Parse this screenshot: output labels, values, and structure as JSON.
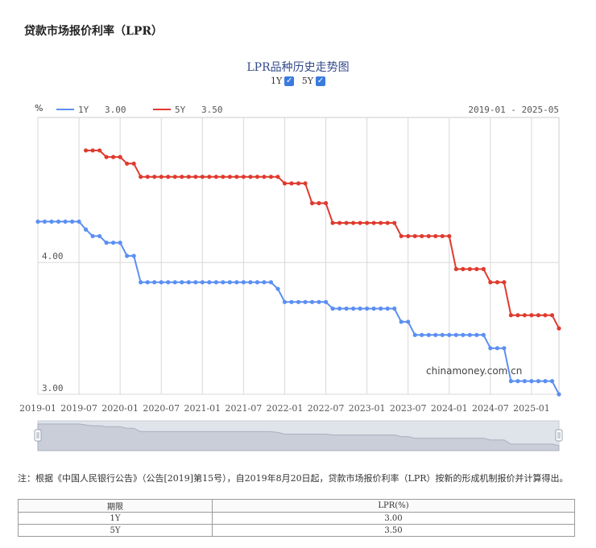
{
  "page": {
    "title": "贷款市场报价利率（LPR）"
  },
  "chart_header": {
    "title": "LPR品种历史走势图",
    "toggles": [
      {
        "label": "1Y",
        "checked": true
      },
      {
        "label": "5Y",
        "checked": true
      }
    ]
  },
  "watermark": "chinamoney.com.cn",
  "chart_data": {
    "type": "line",
    "title": "LPR品种历史走势图",
    "ylabel": "%",
    "date_range_label": "2019-01 - 2025-05",
    "ylim": [
      3.0,
      5.1
    ],
    "yticks": [
      3.0,
      4.0
    ],
    "ytick_labels": [
      "3.00",
      "4.00"
    ],
    "xlim": [
      "2019-01",
      "2025-05"
    ],
    "xtick_labels": [
      "2019-01",
      "2019-07",
      "2020-01",
      "2020-07",
      "2021-01",
      "2021-07",
      "2022-01",
      "2022-07",
      "2023-01",
      "2023-07",
      "2024-01",
      "2024-07",
      "2025-01"
    ],
    "grid": true,
    "legend_position": "top-left",
    "series": [
      {
        "name": "1Y",
        "current": "3.00",
        "color": "#5b8ff2",
        "points": [
          [
            "2019-01",
            4.31
          ],
          [
            "2019-02",
            4.31
          ],
          [
            "2019-03",
            4.31
          ],
          [
            "2019-04",
            4.31
          ],
          [
            "2019-05",
            4.31
          ],
          [
            "2019-06",
            4.31
          ],
          [
            "2019-07",
            4.31
          ],
          [
            "2019-08",
            4.25
          ],
          [
            "2019-09",
            4.2
          ],
          [
            "2019-10",
            4.2
          ],
          [
            "2019-11",
            4.15
          ],
          [
            "2019-12",
            4.15
          ],
          [
            "2020-01",
            4.15
          ],
          [
            "2020-02",
            4.05
          ],
          [
            "2020-03",
            4.05
          ],
          [
            "2020-04",
            3.85
          ],
          [
            "2020-05",
            3.85
          ],
          [
            "2020-06",
            3.85
          ],
          [
            "2020-07",
            3.85
          ],
          [
            "2020-08",
            3.85
          ],
          [
            "2020-09",
            3.85
          ],
          [
            "2020-10",
            3.85
          ],
          [
            "2020-11",
            3.85
          ],
          [
            "2020-12",
            3.85
          ],
          [
            "2021-01",
            3.85
          ],
          [
            "2021-02",
            3.85
          ],
          [
            "2021-03",
            3.85
          ],
          [
            "2021-04",
            3.85
          ],
          [
            "2021-05",
            3.85
          ],
          [
            "2021-06",
            3.85
          ],
          [
            "2021-07",
            3.85
          ],
          [
            "2021-08",
            3.85
          ],
          [
            "2021-09",
            3.85
          ],
          [
            "2021-10",
            3.85
          ],
          [
            "2021-11",
            3.85
          ],
          [
            "2021-12",
            3.8
          ],
          [
            "2022-01",
            3.7
          ],
          [
            "2022-02",
            3.7
          ],
          [
            "2022-03",
            3.7
          ],
          [
            "2022-04",
            3.7
          ],
          [
            "2022-05",
            3.7
          ],
          [
            "2022-06",
            3.7
          ],
          [
            "2022-07",
            3.7
          ],
          [
            "2022-08",
            3.65
          ],
          [
            "2022-09",
            3.65
          ],
          [
            "2022-10",
            3.65
          ],
          [
            "2022-11",
            3.65
          ],
          [
            "2022-12",
            3.65
          ],
          [
            "2023-01",
            3.65
          ],
          [
            "2023-02",
            3.65
          ],
          [
            "2023-03",
            3.65
          ],
          [
            "2023-04",
            3.65
          ],
          [
            "2023-05",
            3.65
          ],
          [
            "2023-06",
            3.55
          ],
          [
            "2023-07",
            3.55
          ],
          [
            "2023-08",
            3.45
          ],
          [
            "2023-09",
            3.45
          ],
          [
            "2023-10",
            3.45
          ],
          [
            "2023-11",
            3.45
          ],
          [
            "2023-12",
            3.45
          ],
          [
            "2024-01",
            3.45
          ],
          [
            "2024-02",
            3.45
          ],
          [
            "2024-03",
            3.45
          ],
          [
            "2024-04",
            3.45
          ],
          [
            "2024-05",
            3.45
          ],
          [
            "2024-06",
            3.45
          ],
          [
            "2024-07",
            3.35
          ],
          [
            "2024-08",
            3.35
          ],
          [
            "2024-09",
            3.35
          ],
          [
            "2024-10",
            3.1
          ],
          [
            "2024-11",
            3.1
          ],
          [
            "2024-12",
            3.1
          ],
          [
            "2025-01",
            3.1
          ],
          [
            "2025-02",
            3.1
          ],
          [
            "2025-03",
            3.1
          ],
          [
            "2025-04",
            3.1
          ],
          [
            "2025-05",
            3.0
          ]
        ]
      },
      {
        "name": "5Y",
        "current": "3.50",
        "color": "#e03a2e",
        "points": [
          [
            "2019-08",
            4.85
          ],
          [
            "2019-09",
            4.85
          ],
          [
            "2019-10",
            4.85
          ],
          [
            "2019-11",
            4.8
          ],
          [
            "2019-12",
            4.8
          ],
          [
            "2020-01",
            4.8
          ],
          [
            "2020-02",
            4.75
          ],
          [
            "2020-03",
            4.75
          ],
          [
            "2020-04",
            4.65
          ],
          [
            "2020-05",
            4.65
          ],
          [
            "2020-06",
            4.65
          ],
          [
            "2020-07",
            4.65
          ],
          [
            "2020-08",
            4.65
          ],
          [
            "2020-09",
            4.65
          ],
          [
            "2020-10",
            4.65
          ],
          [
            "2020-11",
            4.65
          ],
          [
            "2020-12",
            4.65
          ],
          [
            "2021-01",
            4.65
          ],
          [
            "2021-02",
            4.65
          ],
          [
            "2021-03",
            4.65
          ],
          [
            "2021-04",
            4.65
          ],
          [
            "2021-05",
            4.65
          ],
          [
            "2021-06",
            4.65
          ],
          [
            "2021-07",
            4.65
          ],
          [
            "2021-08",
            4.65
          ],
          [
            "2021-09",
            4.65
          ],
          [
            "2021-10",
            4.65
          ],
          [
            "2021-11",
            4.65
          ],
          [
            "2021-12",
            4.65
          ],
          [
            "2022-01",
            4.6
          ],
          [
            "2022-02",
            4.6
          ],
          [
            "2022-03",
            4.6
          ],
          [
            "2022-04",
            4.6
          ],
          [
            "2022-05",
            4.45
          ],
          [
            "2022-06",
            4.45
          ],
          [
            "2022-07",
            4.45
          ],
          [
            "2022-08",
            4.3
          ],
          [
            "2022-09",
            4.3
          ],
          [
            "2022-10",
            4.3
          ],
          [
            "2022-11",
            4.3
          ],
          [
            "2022-12",
            4.3
          ],
          [
            "2023-01",
            4.3
          ],
          [
            "2023-02",
            4.3
          ],
          [
            "2023-03",
            4.3
          ],
          [
            "2023-04",
            4.3
          ],
          [
            "2023-05",
            4.3
          ],
          [
            "2023-06",
            4.2
          ],
          [
            "2023-07",
            4.2
          ],
          [
            "2023-08",
            4.2
          ],
          [
            "2023-09",
            4.2
          ],
          [
            "2023-10",
            4.2
          ],
          [
            "2023-11",
            4.2
          ],
          [
            "2023-12",
            4.2
          ],
          [
            "2024-01",
            4.2
          ],
          [
            "2024-02",
            3.95
          ],
          [
            "2024-03",
            3.95
          ],
          [
            "2024-04",
            3.95
          ],
          [
            "2024-05",
            3.95
          ],
          [
            "2024-06",
            3.95
          ],
          [
            "2024-07",
            3.85
          ],
          [
            "2024-08",
            3.85
          ],
          [
            "2024-09",
            3.85
          ],
          [
            "2024-10",
            3.6
          ],
          [
            "2024-11",
            3.6
          ],
          [
            "2024-12",
            3.6
          ],
          [
            "2025-01",
            3.6
          ],
          [
            "2025-02",
            3.6
          ],
          [
            "2025-03",
            3.6
          ],
          [
            "2025-04",
            3.6
          ],
          [
            "2025-05",
            3.5
          ]
        ]
      }
    ]
  },
  "note": "注：根据《中国人民银行公告》（公告[2019]第15号），自2019年8月20日起，贷款市场报价利率（LPR）按新的形成机制报价并计算得出。",
  "table": {
    "headers": [
      "期限",
      "LPR(%)"
    ],
    "rows": [
      [
        "1Y",
        "3.00"
      ],
      [
        "5Y",
        "3.50"
      ]
    ]
  }
}
